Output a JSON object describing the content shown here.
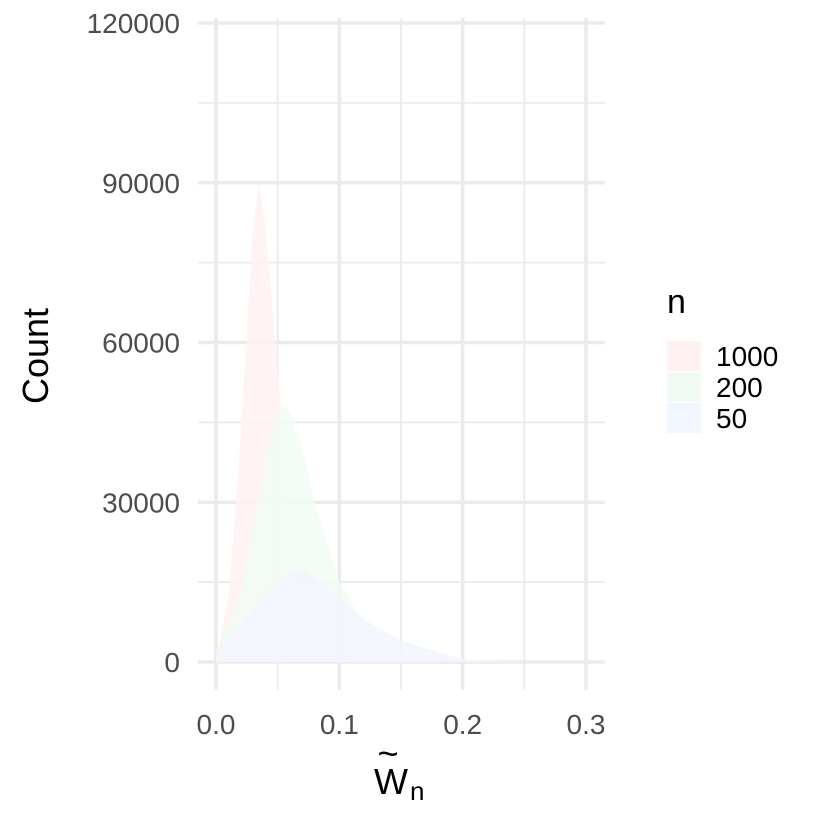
{
  "chart_data": {
    "type": "area",
    "xlabel_main": "W",
    "xlabel_sub": "n",
    "xlabel_accent": "~",
    "ylabel": "Count",
    "xlim": [
      0,
      0.3
    ],
    "ylim": [
      0,
      120000
    ],
    "x_ticks": [
      {
        "value": 0.0,
        "label": "0.0"
      },
      {
        "value": 0.1,
        "label": "0.1"
      },
      {
        "value": 0.2,
        "label": "0.2"
      },
      {
        "value": 0.3,
        "label": "0.3"
      }
    ],
    "y_ticks": [
      {
        "value": 0,
        "label": "0"
      },
      {
        "value": 30000,
        "label": "30000"
      },
      {
        "value": 60000,
        "label": "60000"
      },
      {
        "value": 90000,
        "label": "90000"
      },
      {
        "value": 120000,
        "label": "120000"
      }
    ],
    "grid": true,
    "legend": {
      "title": "n",
      "position": "right"
    },
    "series": [
      {
        "name": "1000",
        "color": "#fff1f1",
        "points": [
          [
            0.0,
            0
          ],
          [
            0.01,
            12000
          ],
          [
            0.02,
            42000
          ],
          [
            0.03,
            82000
          ],
          [
            0.035,
            90000
          ],
          [
            0.04,
            82000
          ],
          [
            0.05,
            55000
          ],
          [
            0.06,
            28000
          ],
          [
            0.07,
            12000
          ],
          [
            0.08,
            4000
          ],
          [
            0.1,
            500
          ],
          [
            0.12,
            0
          ]
        ]
      },
      {
        "name": "200",
        "color": "#f1fbf3",
        "points": [
          [
            0.0,
            2000
          ],
          [
            0.02,
            12000
          ],
          [
            0.04,
            38000
          ],
          [
            0.05,
            47000
          ],
          [
            0.055,
            48500
          ],
          [
            0.06,
            47000
          ],
          [
            0.07,
            40000
          ],
          [
            0.08,
            30000
          ],
          [
            0.1,
            15000
          ],
          [
            0.12,
            7000
          ],
          [
            0.15,
            2000
          ],
          [
            0.2,
            200
          ],
          [
            0.22,
            0
          ]
        ]
      },
      {
        "name": "50",
        "color": "#f2f6fe",
        "points": [
          [
            0.0,
            2000
          ],
          [
            0.02,
            7000
          ],
          [
            0.04,
            13000
          ],
          [
            0.06,
            17000
          ],
          [
            0.07,
            17500
          ],
          [
            0.08,
            16000
          ],
          [
            0.1,
            12000
          ],
          [
            0.12,
            8000
          ],
          [
            0.15,
            4000
          ],
          [
            0.2,
            500
          ],
          [
            0.25,
            0
          ]
        ]
      }
    ]
  }
}
